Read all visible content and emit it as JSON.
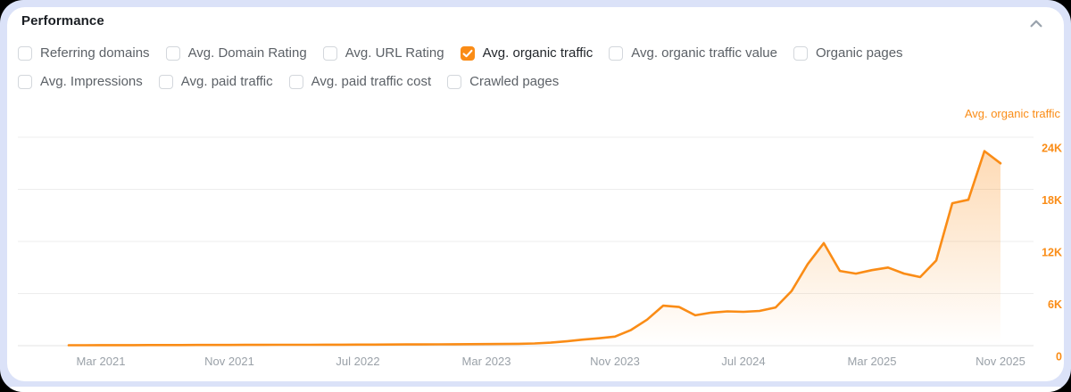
{
  "panel": {
    "title": "Performance",
    "collapse_icon": "chevron-up-icon"
  },
  "colors": {
    "accent": "#fa8c16",
    "background": "#dbe2f8",
    "grid": "#ededed",
    "baseline": "#e3e3e3",
    "axis_text": "#9aa1a8",
    "icon_gray": "#9aa3ad"
  },
  "metric_toggles": {
    "rows": [
      [
        {
          "label": "Referring domains",
          "checked": false
        },
        {
          "label": "Avg. Domain Rating",
          "checked": false
        },
        {
          "label": "Avg. URL Rating",
          "checked": false
        },
        {
          "label": "Avg. organic traffic",
          "checked": true
        },
        {
          "label": "Avg. organic traffic value",
          "checked": false
        },
        {
          "label": "Organic pages",
          "checked": false
        }
      ],
      [
        {
          "label": "Avg. Impressions",
          "checked": false
        },
        {
          "label": "Avg. paid traffic",
          "checked": false
        },
        {
          "label": "Avg. paid traffic cost",
          "checked": false
        },
        {
          "label": "Crawled pages",
          "checked": false
        }
      ]
    ]
  },
  "chart_data": {
    "type": "area",
    "title": "Avg. organic traffic",
    "legend_position": "top-right",
    "grid": true,
    "ylim": [
      0,
      24000
    ],
    "y_axis_side": "right",
    "y_ticks": [
      {
        "value": 24000,
        "label": "24K"
      },
      {
        "value": 18000,
        "label": "18K"
      },
      {
        "value": 12000,
        "label": "12K"
      },
      {
        "value": 6000,
        "label": "6K"
      },
      {
        "value": 0,
        "label": "0"
      }
    ],
    "x_ticks": [
      {
        "index": 2,
        "label": "Mar 2021"
      },
      {
        "index": 10,
        "label": "Nov 2021"
      },
      {
        "index": 18,
        "label": "Jul 2022"
      },
      {
        "index": 26,
        "label": "Mar 2023"
      },
      {
        "index": 34,
        "label": "Nov 2023"
      },
      {
        "index": 42,
        "label": "Jul 2024"
      },
      {
        "index": 50,
        "label": "Mar 2025"
      },
      {
        "index": 58,
        "label": "Nov 2025"
      }
    ],
    "x": [
      "Jan 2021",
      "Feb 2021",
      "Mar 2021",
      "Apr 2021",
      "May 2021",
      "Jun 2021",
      "Jul 2021",
      "Aug 2021",
      "Sep 2021",
      "Oct 2021",
      "Nov 2021",
      "Dec 2021",
      "Jan 2022",
      "Feb 2022",
      "Mar 2022",
      "Apr 2022",
      "May 2022",
      "Jun 2022",
      "Jul 2022",
      "Aug 2022",
      "Sep 2022",
      "Oct 2022",
      "Nov 2022",
      "Dec 2022",
      "Jan 2023",
      "Feb 2023",
      "Mar 2023",
      "Apr 2023",
      "May 2023",
      "Jun 2023",
      "Jul 2023",
      "Aug 2023",
      "Sep 2023",
      "Oct 2023",
      "Nov 2023",
      "Dec 2023",
      "Jan 2024",
      "Feb 2024",
      "Mar 2024",
      "Apr 2024",
      "May 2024",
      "Jun 2024",
      "Jul 2024",
      "Aug 2024",
      "Sep 2024",
      "Oct 2024",
      "Nov 2024",
      "Dec 2024",
      "Jan 2025",
      "Feb 2025",
      "Mar 2025",
      "Apr 2025",
      "May 2025",
      "Jun 2025",
      "Jul 2025",
      "Aug 2025",
      "Sep 2025",
      "Oct 2025",
      "Nov 2025"
    ],
    "series": [
      {
        "name": "Avg. organic traffic",
        "color": "#fa8c16",
        "values": [
          50,
          55,
          60,
          60,
          65,
          70,
          70,
          75,
          80,
          80,
          85,
          90,
          95,
          100,
          100,
          105,
          110,
          115,
          120,
          125,
          130,
          140,
          145,
          150,
          160,
          170,
          180,
          200,
          220,
          260,
          350,
          500,
          700,
          850,
          1050,
          1800,
          3000,
          4600,
          4450,
          3500,
          3800,
          3950,
          3900,
          4000,
          4400,
          6300,
          9400,
          11800,
          8600,
          8300,
          8700,
          9000,
          8300,
          7900,
          9800,
          16400,
          16800,
          22400,
          21000
        ]
      }
    ]
  }
}
